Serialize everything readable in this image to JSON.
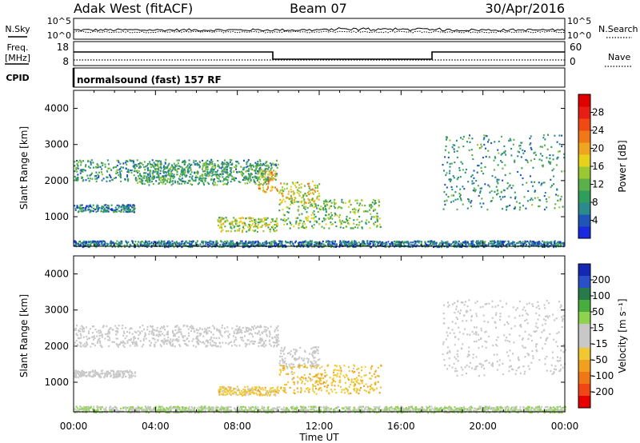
{
  "header": {
    "station": "Adak West (fitACF)",
    "beam": "Beam 07",
    "date": "30/Apr/2016"
  },
  "noise_panel": {
    "left_label": "N.Sky",
    "right_label": "N.Search",
    "left_ticks": [
      "10^5",
      "10^0"
    ],
    "right_ticks": [
      "10^5",
      "10^0"
    ]
  },
  "freq_panel": {
    "left_label_line1": "Freq.",
    "left_label_line2": "[MHz]",
    "left_ticks": [
      "18",
      "8"
    ],
    "right_ticks": [
      "60",
      "0"
    ],
    "right_label": "Nave"
  },
  "cpid_panel": {
    "label": "CPID",
    "mode": "normalsound (fast) 157 RF"
  },
  "x_axis": {
    "ticks": [
      "00:00",
      "04:00",
      "08:00",
      "12:00",
      "16:00",
      "20:00",
      "00:00"
    ],
    "label": "Time UT"
  },
  "chart_data": [
    {
      "type": "heatmap",
      "name": "power",
      "ylabel": "Slant Range [km]",
      "yticks": [
        "4000",
        "3000",
        "2000",
        "1000"
      ],
      "ylim": [
        180,
        4500
      ],
      "xlim_hours": [
        0,
        24
      ],
      "colorbar": {
        "label": "Power [dB]",
        "ticks": [
          "28",
          "24",
          "20",
          "16",
          "12",
          "8",
          "4"
        ],
        "range": [
          0,
          30
        ],
        "colors": [
          "#1a28e0",
          "#1f55b8",
          "#2a8a8c",
          "#2f9e5a",
          "#5cb04a",
          "#9ac832",
          "#e6d21a",
          "#f0a51e",
          "#f07818",
          "#ef4a14",
          "#e61e14",
          "#e00000"
        ]
      },
      "features": [
        {
          "x": [
            0.0,
            10.0
          ],
          "y": [
            2000,
            2600
          ],
          "value": 8
        },
        {
          "x": [
            0.0,
            3.0
          ],
          "y": [
            1150,
            1350
          ],
          "value": 6
        },
        {
          "x": [
            3.0,
            9.5
          ],
          "y": [
            1900,
            2500
          ],
          "value": 10
        },
        {
          "x": [
            9.0,
            10.0
          ],
          "y": [
            1700,
            2300
          ],
          "value": 18
        },
        {
          "x": [
            10.0,
            12.0
          ],
          "y": [
            1400,
            2000
          ],
          "value": 16
        },
        {
          "x": [
            7.0,
            10.0
          ],
          "y": [
            600,
            1000
          ],
          "value": 14
        },
        {
          "x": [
            10.0,
            15.0
          ],
          "y": [
            700,
            1500
          ],
          "value": 12
        },
        {
          "x": [
            18.0,
            24.0
          ],
          "y": [
            1200,
            3300
          ],
          "value": 8
        },
        {
          "x": [
            0.0,
            24.0
          ],
          "y": [
            180,
            350
          ],
          "value": 6
        }
      ]
    },
    {
      "type": "heatmap",
      "name": "velocity",
      "ylabel": "Slant Range [km]",
      "yticks": [
        "4000",
        "3000",
        "2000",
        "1000"
      ],
      "ylim": [
        180,
        4500
      ],
      "xlim_hours": [
        0,
        24
      ],
      "colorbar": {
        "label": "Velocity [m s⁻¹]",
        "ticks": [
          "200",
          "100",
          "50",
          "15",
          "-15",
          "-50",
          "-100",
          "-200"
        ],
        "range": [
          -250,
          250
        ],
        "colors": [
          "#1428b4",
          "#2a50c8",
          "#287a4a",
          "#48ad3c",
          "#8ed24e",
          "#c8c8c8",
          "#c8c8c8",
          "#f0c832",
          "#f0a01e",
          "#f07814",
          "#f04614",
          "#e60000"
        ]
      },
      "features": [
        {
          "x": [
            0.0,
            10.0
          ],
          "y": [
            2000,
            2600
          ],
          "value": 0
        },
        {
          "x": [
            0.0,
            3.0
          ],
          "y": [
            1150,
            1350
          ],
          "value": 0
        },
        {
          "x": [
            10.0,
            12.0
          ],
          "y": [
            1400,
            2000
          ],
          "value": 0
        },
        {
          "x": [
            7.0,
            10.0
          ],
          "y": [
            650,
            900
          ],
          "value": -60
        },
        {
          "x": [
            10.0,
            15.0
          ],
          "y": [
            700,
            1500
          ],
          "value": -70
        },
        {
          "x": [
            18.0,
            24.0
          ],
          "y": [
            1200,
            3300
          ],
          "value": 0
        },
        {
          "x": [
            0.0,
            24.0
          ],
          "y": [
            180,
            350
          ],
          "value": 40
        }
      ]
    }
  ]
}
